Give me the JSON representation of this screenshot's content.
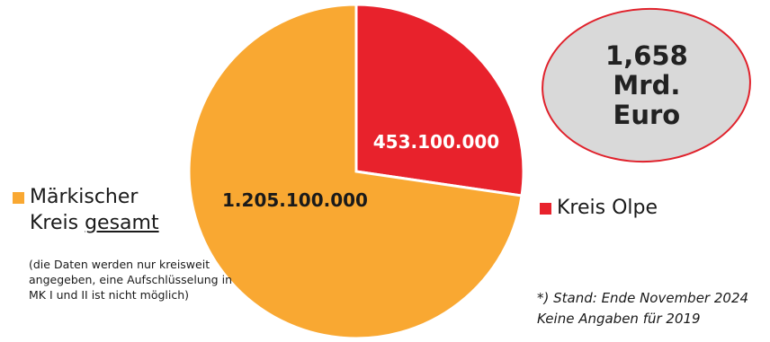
{
  "chart_data": {
    "type": "pie",
    "slices": [
      {
        "label": "Märkischer Kreis gesamt",
        "value": 1205100000,
        "value_label": "1.205.100.000",
        "color": "#f9a832"
      },
      {
        "label": "Kreis Olpe",
        "value": 453100000,
        "value_label": "453.100.000",
        "color": "#e8222c"
      }
    ]
  },
  "total": {
    "text": "1,658\nMrd.\nEuro"
  },
  "legend": {
    "mk_line1": "Märkischer",
    "mk_line2_prefix": "Kreis ",
    "mk_line2_emph": "gesamt",
    "olpe": "Kreis Olpe"
  },
  "note": "(die Daten werden nur kreisweit angegeben, eine Aufschlüsselung in MK I und II ist nicht möglich)",
  "footnote": {
    "line1": "*) Stand: Ende November 2024",
    "line2": "Keine Angaben für 2019"
  }
}
